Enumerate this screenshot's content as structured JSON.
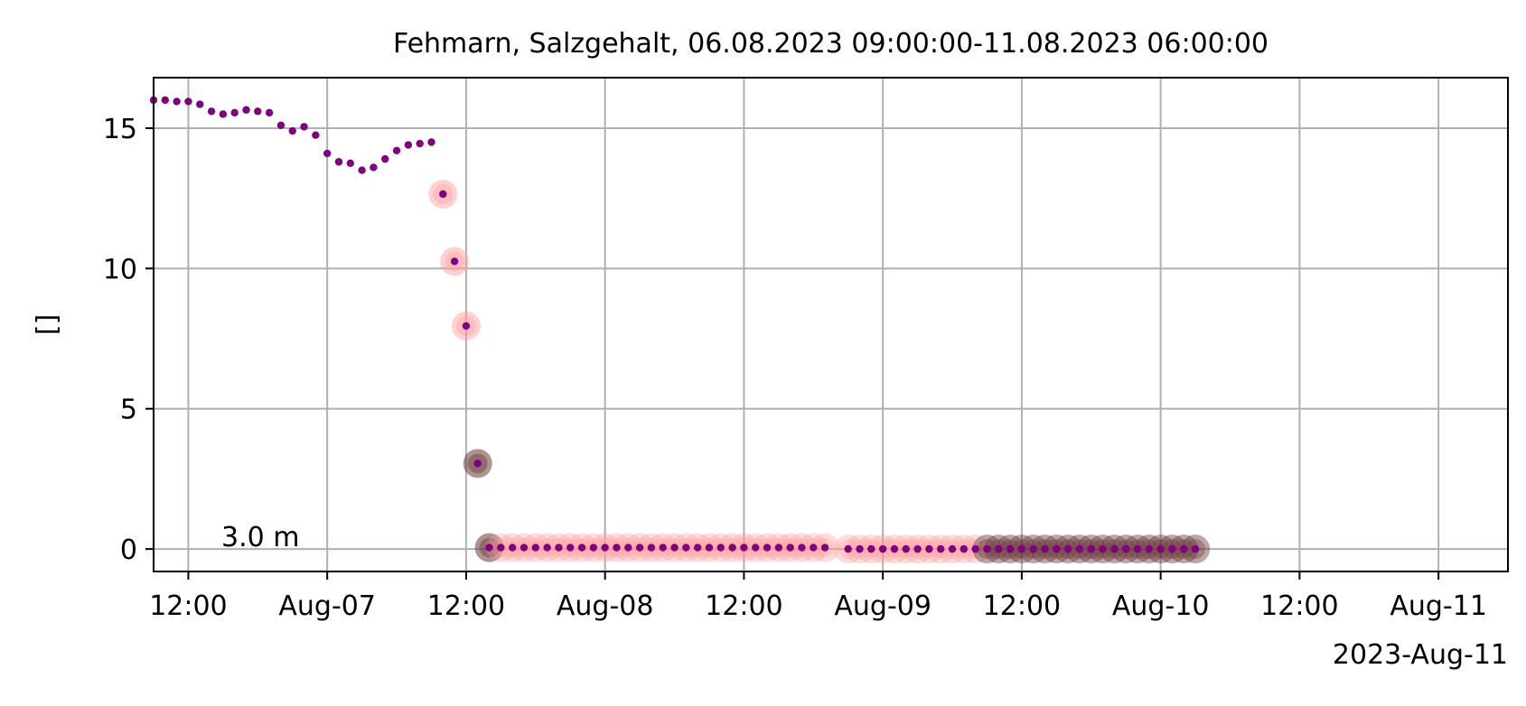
{
  "chart_data": {
    "type": "scatter",
    "title": "Fehmarn, Salzgehalt, 06.08.2023 09:00:00-11.08.2023 06:00:00",
    "xlabel": "",
    "ylabel": "[]",
    "x_offset_label": "2023-Aug-11",
    "annotation": "3.0 m",
    "xlim": [
      "2023-08-06T09:00",
      "2023-08-11T06:00"
    ],
    "ylim": [
      -0.8,
      16.8
    ],
    "grid": true,
    "x_ticks": [
      {
        "t": "2023-08-06T12:00",
        "label": "12:00"
      },
      {
        "t": "2023-08-07T00:00",
        "label": "Aug-07"
      },
      {
        "t": "2023-08-07T12:00",
        "label": "12:00"
      },
      {
        "t": "2023-08-08T00:00",
        "label": "Aug-08"
      },
      {
        "t": "2023-08-08T12:00",
        "label": "12:00"
      },
      {
        "t": "2023-08-09T00:00",
        "label": "Aug-09"
      },
      {
        "t": "2023-08-09T12:00",
        "label": "12:00"
      },
      {
        "t": "2023-08-10T00:00",
        "label": "Aug-10"
      },
      {
        "t": "2023-08-10T12:00",
        "label": "12:00"
      },
      {
        "t": "2023-08-11T00:00",
        "label": "Aug-11"
      }
    ],
    "y_ticks": [
      0,
      5,
      10,
      15
    ],
    "series": [
      {
        "marker_color": "#800080",
        "start": "2023-08-06T09:00",
        "step_minutes": 60,
        "values": [
          16.0,
          16.0,
          15.95,
          15.95,
          15.85,
          15.6,
          15.5,
          15.55,
          15.65,
          15.6,
          15.55,
          15.1,
          14.9,
          15.05,
          14.75,
          14.1,
          13.8,
          13.75,
          13.5,
          13.6,
          13.9,
          14.2,
          14.4,
          14.45,
          14.5
        ]
      },
      {
        "marker_color": "#800080",
        "start": "2023-08-07T10:00",
        "step_minutes": 60,
        "values": [
          12.65,
          10.25,
          7.95,
          3.05
        ]
      },
      {
        "marker_color": "#800080",
        "start": "2023-08-07T14:00",
        "end": "2023-08-08T19:00",
        "step_minutes": 60,
        "value": 0.05
      },
      {
        "marker_color": "#800080",
        "start": "2023-08-08T21:00",
        "end": "2023-08-10T03:00",
        "step_minutes": 60,
        "value": 0.0
      }
    ],
    "flag_highlights": [
      {
        "start": "2023-08-07T10:00",
        "end": "2023-08-07T12:00",
        "color": "#ff9a9a",
        "opacity": 0.45
      },
      {
        "start": "2023-08-07T13:00",
        "end": "2023-08-07T13:00",
        "color": "#6b3a3a",
        "opacity": 0.55
      },
      {
        "start": "2023-08-07T14:00",
        "end": "2023-08-07T14:00",
        "color": "#6b3a3a",
        "opacity": 0.55
      },
      {
        "start": "2023-08-07T15:00",
        "end": "2023-08-08T19:00",
        "color": "#ff9a9a",
        "opacity": 0.35
      },
      {
        "start": "2023-08-08T21:00",
        "end": "2023-08-09T08:00",
        "color": "#ff9a9a",
        "opacity": 0.35
      },
      {
        "start": "2023-08-09T09:00",
        "end": "2023-08-10T03:00",
        "color": "#6b3a3a",
        "opacity": 0.45
      }
    ]
  }
}
